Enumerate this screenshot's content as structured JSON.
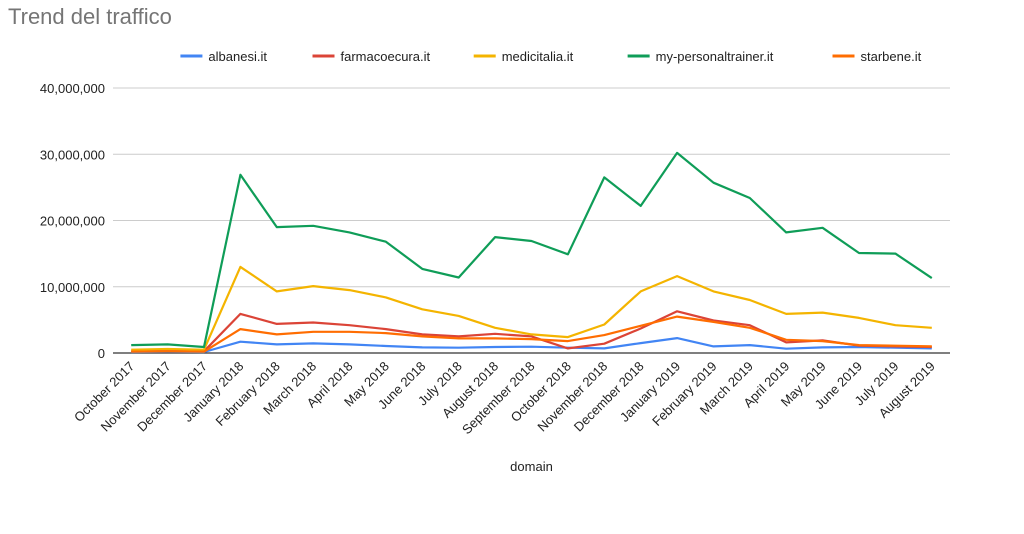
{
  "title": "Trend del traffico",
  "chart_data": {
    "type": "line",
    "title": "Trend del traffico",
    "xlabel": "domain",
    "ylabel": "",
    "ylim": [
      0,
      40000000
    ],
    "yticks": [
      0,
      10000000,
      20000000,
      30000000,
      40000000
    ],
    "ytick_labels": [
      "0",
      "10,000,000",
      "20,000,000",
      "30,000,000",
      "40,000,000"
    ],
    "grid": true,
    "legend_position": "top",
    "categories": [
      "October 2017",
      "November 2017",
      "December 2017",
      "January 2018",
      "February 2018",
      "March 2018",
      "April 2018",
      "May 2018",
      "June 2018",
      "July 2018",
      "August 2018",
      "September 2018",
      "October 2018",
      "November 2018",
      "December 2018",
      "January 2019",
      "February 2019",
      "March 2019",
      "April 2019",
      "May 2019",
      "June 2019",
      "July 2019",
      "August 2019"
    ],
    "series": [
      {
        "name": "albanesi.it",
        "color": "#4285f4",
        "values": [
          150000,
          200000,
          150000,
          1700000,
          1300000,
          1450000,
          1300000,
          1050000,
          850000,
          800000,
          900000,
          950000,
          800000,
          700000,
          1500000,
          2250000,
          1000000,
          1200000,
          650000,
          850000,
          900000,
          800000,
          700000
        ]
      },
      {
        "name": "farmacoecura.it",
        "color": "#db4437",
        "values": [
          300000,
          350000,
          250000,
          5900000,
          4400000,
          4600000,
          4200000,
          3600000,
          2800000,
          2500000,
          2900000,
          2500000,
          700000,
          1400000,
          3700000,
          6300000,
          4900000,
          4200000,
          1600000,
          1900000,
          1100000,
          1000000,
          900000
        ]
      },
      {
        "name": "medicitalia.it",
        "color": "#f4b400",
        "values": [
          500000,
          600000,
          500000,
          13000000,
          9300000,
          10100000,
          9500000,
          8400000,
          6600000,
          5600000,
          3800000,
          2800000,
          2400000,
          4300000,
          9300000,
          11600000,
          9300000,
          8000000,
          5900000,
          6100000,
          5300000,
          4200000,
          3800000
        ]
      },
      {
        "name": "my-personaltrainer.it",
        "color": "#0f9d58",
        "values": [
          1200000,
          1300000,
          900000,
          26900000,
          19000000,
          19200000,
          18200000,
          16800000,
          12700000,
          11400000,
          17500000,
          16900000,
          14900000,
          26500000,
          22200000,
          30200000,
          25700000,
          23400000,
          18200000,
          18900000,
          15100000,
          15000000,
          11300000
        ]
      },
      {
        "name": "starbene.it",
        "color": "#ff6d01",
        "values": [
          200000,
          250000,
          200000,
          3600000,
          2800000,
          3200000,
          3200000,
          3000000,
          2500000,
          2200000,
          2200000,
          2100000,
          1800000,
          2700000,
          4100000,
          5500000,
          4700000,
          3800000,
          2000000,
          1800000,
          1200000,
          1100000,
          1000000
        ]
      }
    ]
  }
}
